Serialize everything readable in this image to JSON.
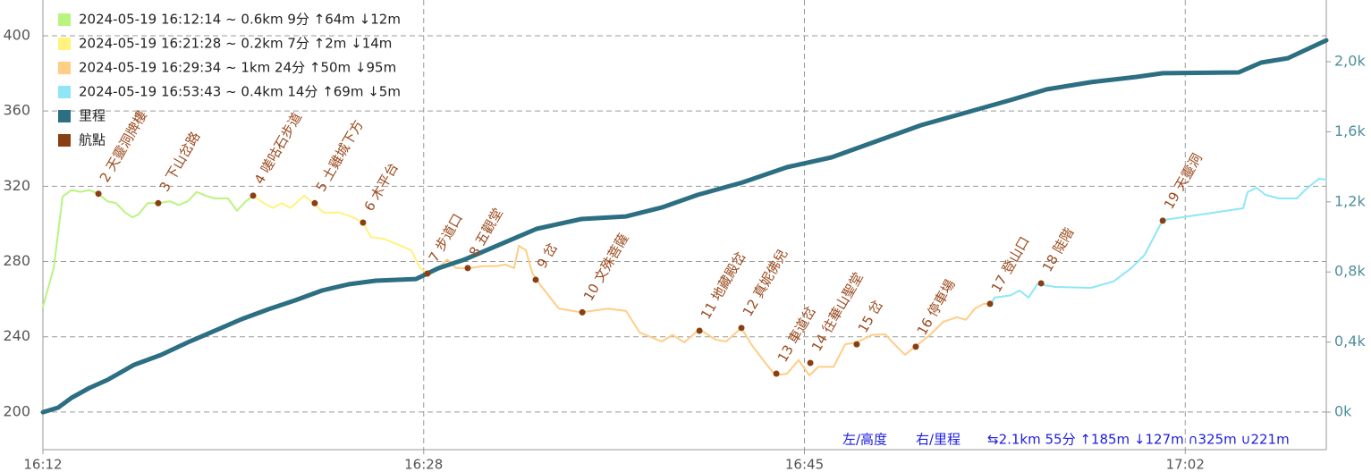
{
  "chart_data": {
    "type": "line",
    "series": [
      {
        "name": "2024-05-19 16:12:14 ~ 0.6km 9分 ↑64m ↓12m",
        "color": "#b9f47f",
        "x": [
          972.25,
          972.71,
          973.09,
          973.47,
          973.85,
          974.23,
          974.62,
          975.0,
          975.38,
          975.76,
          976.07,
          976.33,
          976.72,
          977.17,
          977.67,
          978.05,
          978.43,
          978.81,
          979.2,
          979.58,
          980.15,
          980.53,
          980.91,
          981.22
        ],
        "values": [
          256,
          276.5,
          314.5,
          318,
          317,
          318,
          316,
          312,
          311,
          306,
          303.5,
          305,
          311,
          311,
          312,
          310,
          312,
          317,
          315,
          313.5,
          313.5,
          307,
          312,
          315
        ]
      },
      {
        "name": "2024-05-19 16:21:28 ~ 0.2km 7分 ↑2m ↓14m",
        "color": "#fff27d",
        "x": [
          981.22,
          981.68,
          982.06,
          982.44,
          982.82,
          983.4,
          983.78,
          984.23,
          984.92,
          985.49,
          985.91,
          986.25,
          986.82,
          987.4,
          987.97,
          988.35,
          988.62
        ],
        "values": [
          315,
          311,
          308.5,
          311,
          308.5,
          315,
          311,
          306,
          306,
          303.5,
          300.7,
          293,
          292,
          289,
          286,
          276.5,
          274
        ]
      },
      {
        "name": "2024-05-19 16:29:34 ~ 1km 24分 ↑50m ↓95m",
        "color": "#ffcd86",
        "x": [
          988.62,
          989.12,
          989.5,
          989.88,
          990.46,
          991.03,
          991.6,
          991.98,
          992.36,
          992.56,
          992.86,
          993.13,
          993.51,
          994.27,
          995.23,
          996.37,
          997.14,
          997.71,
          998.66,
          999.12,
          999.62,
          1000.27,
          1000.95,
          1001.41,
          1002.06,
          1002.48,
          1003.05,
          1003.51,
          1004.01,
          1004.5,
          1004.96,
          1005.34,
          1005.99,
          1006.49,
          1006.98,
          1007.63,
          1008.2,
          1008.59,
          1009.04,
          1009.5,
          1010.11,
          1010.68,
          1011.26,
          1011.64,
          1012.02,
          1012.4,
          1012.71
        ],
        "values": [
          274,
          276.5,
          281,
          276.5,
          276.5,
          277.5,
          277.5,
          278.4,
          276.5,
          288.4,
          286,
          274,
          267,
          255,
          253,
          255,
          253.7,
          242.3,
          237.5,
          241,
          237,
          244,
          238.5,
          237.5,
          244.7,
          236,
          226.6,
          219.5,
          220.4,
          227.6,
          219.5,
          224,
          224,
          236,
          237,
          241,
          241.3,
          236,
          230.4,
          235,
          241,
          248,
          250.4,
          249,
          255,
          257.5,
          257.5
        ]
      },
      {
        "name": "2024-05-19 16:53:43 ~ 0.4km 14分 ↑69m ↓5m",
        "color": "#8ee6f8",
        "x": [
          1012.71,
          1012.86,
          1013.55,
          1013.93,
          1014.31,
          1014.69,
          1015.46,
          1016.98,
          1017.94,
          1018.7,
          1019.27,
          1020.04,
          1023.47,
          1023.66,
          1024.04,
          1024.43,
          1025.0,
          1025.76,
          1026.14,
          1026.71,
          1027.02
        ],
        "values": [
          257.5,
          260.8,
          262,
          264.6,
          260.8,
          268,
          266.5,
          266,
          269.4,
          276.5,
          283.6,
          302,
          308.3,
          316.9,
          319.2,
          315.4,
          313.5,
          313.5,
          318.3,
          324,
          323.5
        ]
      },
      {
        "name": "里程",
        "color": "#2c6e82",
        "axis": "y2",
        "x": [
          972.25,
          972.9,
          973.47,
          974.23,
          975.0,
          976.14,
          977.29,
          978.43,
          979.58,
          980.73,
          981.87,
          983.01,
          984.16,
          985.3,
          986.45,
          988.17,
          989.12,
          990.27,
          991.79,
          993.32,
          995.23,
          997.14,
          998.66,
          1000.19,
          1002.1,
          1004.01,
          1005.91,
          1007.82,
          1009.73,
          1011.64,
          1013.55,
          1015.08,
          1016.98,
          1018.89,
          1020.04,
          1023.28,
          1024.24,
          1025.38,
          1027.02
        ],
        "values": [
          0,
          26,
          82,
          138,
          184,
          270,
          327,
          398,
          464,
          531,
          587,
          638,
          694,
          730,
          750,
          760,
          821,
          872,
          959,
          1046,
          1102,
          1117,
          1168,
          1240,
          1311,
          1398,
          1454,
          1546,
          1638,
          1709,
          1781,
          1842,
          1883,
          1913,
          1934,
          1939,
          1995,
          2020,
          2122
        ]
      }
    ],
    "waypoints": {
      "name": "航點",
      "color": "#8a3f12",
      "labels": [
        "2 天靈洞牌樓",
        "3 下山岔路",
        "4 嗟咕石步道",
        "5 土雞城下方",
        "6 木平台",
        "7 步道口",
        "8 五觀堂",
        "9 岔",
        "10 文殊菩薩",
        "11 地藏殿岔",
        "12 真妮佛兒",
        "13 車道岔",
        "14 往華山聖堂",
        "15 岔",
        "16 停車場",
        "17 登山口",
        "18 陡階",
        "19 天靈洞"
      ],
      "x": [
        974.62,
        977.17,
        981.22,
        983.85,
        985.91,
        988.66,
        990.38,
        993.28,
        995.27,
        1000.27,
        1002.06,
        1003.55,
        1005.0,
        1006.98,
        1009.5,
        1012.67,
        1014.85,
        1020.04
      ],
      "values": [
        316,
        311,
        315,
        311,
        300.7,
        273.6,
        276.5,
        270.3,
        253,
        243.2,
        244.7,
        220.4,
        226.1,
        236,
        234.7,
        257.5,
        268.4,
        301.7
      ]
    },
    "xlim": [
      972.25,
      1027.02
    ],
    "xticks": [
      {
        "value": 972.25,
        "label": "16:12"
      },
      {
        "value": 988.5,
        "label": "16:28"
      },
      {
        "value": 1004.75,
        "label": "16:45"
      },
      {
        "value": 1021.0,
        "label": "17:02"
      }
    ],
    "ylim": [
      180,
      419
    ],
    "yticks": [
      200,
      240,
      280,
      320,
      360,
      400
    ],
    "y2lim": [
      -214,
      2352
    ],
    "y2ticks": [
      {
        "value": 0,
        "label": "0k"
      },
      {
        "value": 400,
        "label": "0,4k"
      },
      {
        "value": 800,
        "label": "0,8k"
      },
      {
        "value": 1200,
        "label": "1,2k"
      },
      {
        "value": 1600,
        "label": "1,6k"
      },
      {
        "value": 2000,
        "label": "2,0k"
      }
    ],
    "grid": true,
    "annotations": [
      "左/高度",
      "右/里程",
      "⇆2.1km 55分 ↑185m ↓127m ∩325m ∪221m"
    ]
  }
}
